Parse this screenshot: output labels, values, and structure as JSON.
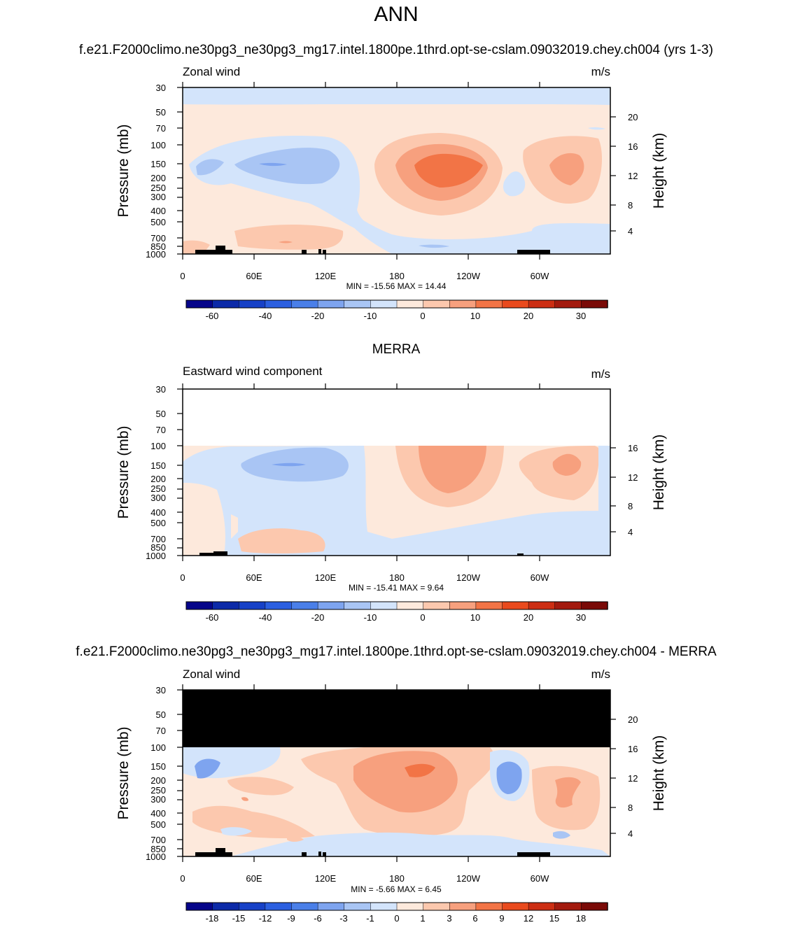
{
  "page_title": "ANN",
  "chart_data": [
    {
      "type": "heatmap",
      "title": "f.e21.F2000climo.ne30pg3_ne30pg3_mg17.intel.1800pe.1thrd.opt-se-cslam.09032019.chey.ch004 (yrs 1-3)",
      "left_label": "Zonal wind",
      "units": "m/s",
      "ylabel": "Pressure (mb)",
      "ylabel_right": "Height (km)",
      "x_ticks": [
        "0",
        "60E",
        "120E",
        "180",
        "120W",
        "60W"
      ],
      "y_ticks": [
        "30",
        "50",
        "70",
        "100",
        "150",
        "200",
        "250",
        "300",
        "400",
        "500",
        "700",
        "850",
        "1000"
      ],
      "y_right_ticks": [
        "20",
        "16",
        "12",
        "8",
        "4"
      ],
      "min_max_text": "MIN = -15.56  MAX =  14.44",
      "min": -15.56,
      "max": 14.44,
      "colorbar_labels": [
        "-60",
        "-40",
        "-20",
        "-10",
        "0",
        "10",
        "20",
        "30"
      ],
      "colorbar_colors": [
        "#06058a",
        "#0c2aa8",
        "#1741c7",
        "#2b5fe0",
        "#4a7fe8",
        "#7ea4ef",
        "#a9c5f4",
        "#d3e4fb",
        "#fde9dc",
        "#fcc8ae",
        "#f7a07e",
        "#f27446",
        "#e94a1d",
        "#cc2e13",
        "#a31a0e",
        "#7a0a07"
      ],
      "x_range": [
        "0",
        "360"
      ],
      "y_range": [
        1000,
        30
      ],
      "log_y": true
    },
    {
      "type": "heatmap",
      "title": "MERRA",
      "left_label": "Eastward wind component",
      "units": "m/s",
      "ylabel": "Pressure (mb)",
      "ylabel_right": "Height (km)",
      "x_ticks": [
        "0",
        "60E",
        "120E",
        "180",
        "120W",
        "60W"
      ],
      "y_ticks": [
        "30",
        "50",
        "70",
        "100",
        "150",
        "200",
        "250",
        "300",
        "400",
        "500",
        "700",
        "850",
        "1000"
      ],
      "y_right_ticks": [
        "16",
        "12",
        "8",
        "4"
      ],
      "min_max_text": "MIN = -15.41  MAX =  9.64",
      "min": -15.41,
      "max": 9.64,
      "colorbar_labels": [
        "-60",
        "-40",
        "-20",
        "-10",
        "0",
        "10",
        "20",
        "30"
      ],
      "colorbar_colors": [
        "#06058a",
        "#0c2aa8",
        "#1741c7",
        "#2b5fe0",
        "#4a7fe8",
        "#7ea4ef",
        "#a9c5f4",
        "#d3e4fb",
        "#fde9dc",
        "#fcc8ae",
        "#f7a07e",
        "#f27446",
        "#e94a1d",
        "#cc2e13",
        "#a31a0e",
        "#7a0a07"
      ],
      "x_range": [
        "0",
        "360"
      ],
      "y_range": [
        1000,
        30
      ],
      "log_y": true
    },
    {
      "type": "heatmap",
      "title": "f.e21.F2000climo.ne30pg3_ne30pg3_mg17.intel.1800pe.1thrd.opt-se-cslam.09032019.chey.ch004 - MERRA",
      "left_label": "Zonal wind",
      "units": "m/s",
      "ylabel": "Pressure (mb)",
      "ylabel_right": "Height (km)",
      "x_ticks": [
        "0",
        "60E",
        "120E",
        "180",
        "120W",
        "60W"
      ],
      "y_ticks": [
        "30",
        "50",
        "70",
        "100",
        "150",
        "200",
        "250",
        "300",
        "400",
        "500",
        "700",
        "850",
        "1000"
      ],
      "y_right_ticks": [
        "20",
        "16",
        "12",
        "8",
        "4"
      ],
      "min_max_text": "MIN =  -5.66  MAX =  6.45",
      "min": -5.66,
      "max": 6.45,
      "colorbar_labels": [
        "-18",
        "-15",
        "-12",
        "-9",
        "-6",
        "-3",
        "-1",
        "0",
        "1",
        "3",
        "6",
        "9",
        "12",
        "15",
        "18"
      ],
      "colorbar_colors": [
        "#06058a",
        "#0c2aa8",
        "#1741c7",
        "#2b5fe0",
        "#4a7fe8",
        "#7ea4ef",
        "#a9c5f4",
        "#d3e4fb",
        "#fde9dc",
        "#fcc8ae",
        "#f7a07e",
        "#f27446",
        "#e94a1d",
        "#cc2e13",
        "#a31a0e",
        "#7a0a07"
      ],
      "x_range": [
        "0",
        "360"
      ],
      "y_range": [
        1000,
        30
      ],
      "log_y": true
    }
  ]
}
